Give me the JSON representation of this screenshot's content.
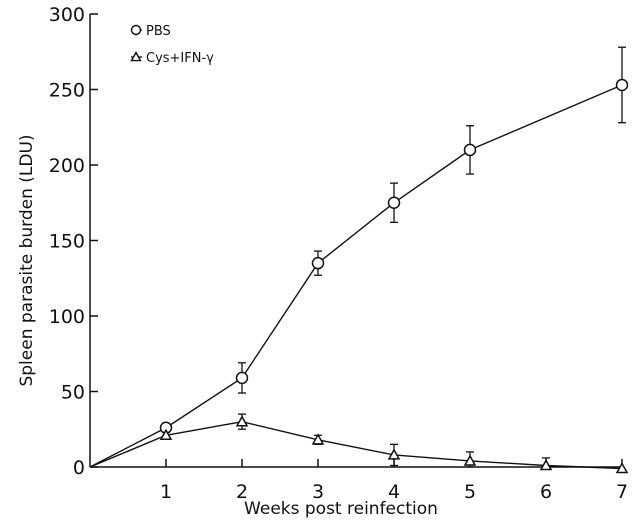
{
  "chart_data": {
    "type": "line",
    "xlabel": "Weeks post reinfection",
    "ylabel": "Spleen parasite burden (LDU)",
    "xlim": [
      0,
      7
    ],
    "ylim": [
      0,
      300
    ],
    "x_ticks": [
      "1",
      "2",
      "3",
      "4",
      "5",
      "6",
      "7"
    ],
    "y_ticks": [
      "0",
      "50",
      "100",
      "150",
      "200",
      "250",
      "300"
    ],
    "grid": false,
    "legend_position": "top-left",
    "series": [
      {
        "name": "PBS",
        "marker": "circle",
        "x": [
          0,
          1,
          2,
          3,
          4,
          5,
          7
        ],
        "y": [
          0,
          26,
          59,
          135,
          175,
          210,
          253
        ],
        "error": [
          null,
          3,
          10,
          8,
          13,
          16,
          25
        ]
      },
      {
        "name": "Cys+IFN-γ",
        "marker": "triangle",
        "x": [
          0,
          1,
          2,
          3,
          4,
          5,
          6,
          7
        ],
        "y": [
          0,
          21,
          30,
          18,
          8,
          4,
          1,
          -1
        ],
        "error": [
          null,
          2,
          5,
          3,
          7,
          6,
          5,
          null
        ]
      }
    ]
  }
}
